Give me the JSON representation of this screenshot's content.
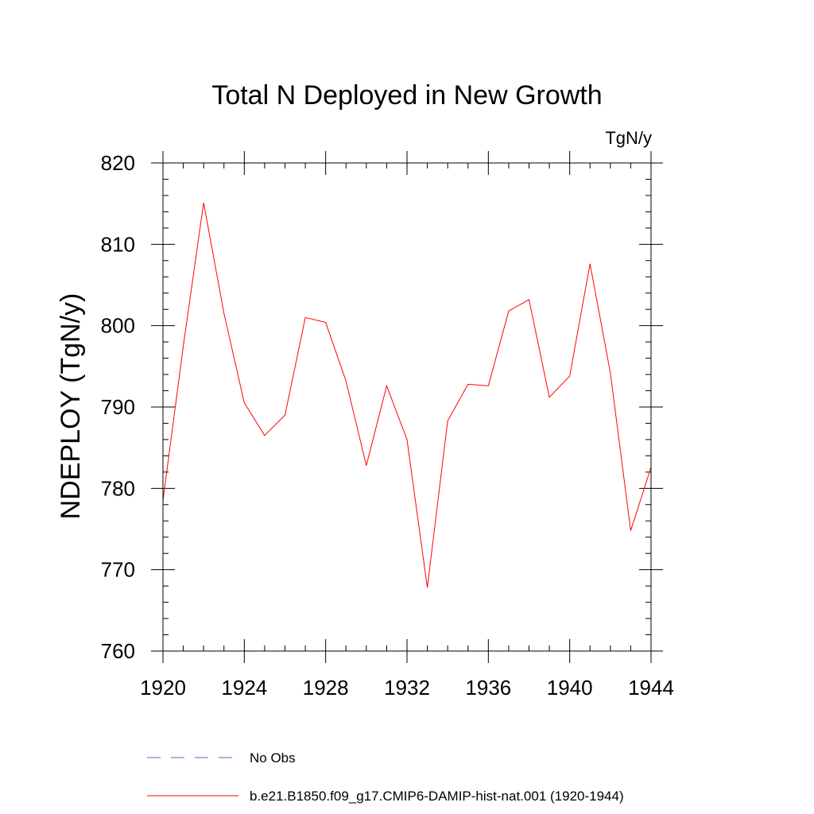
{
  "chart_data": {
    "type": "line",
    "title": "Total N Deployed in New Growth",
    "units_label": "TgN/y",
    "ylabel": "NDEPLOY  (TgN/y)",
    "xlabel": "",
    "xlim": [
      1920,
      1944
    ],
    "ylim": [
      760,
      820
    ],
    "x_ticks": [
      1920,
      1924,
      1928,
      1932,
      1936,
      1940,
      1944
    ],
    "y_ticks": [
      760,
      770,
      780,
      790,
      800,
      810,
      820
    ],
    "x_minor_step": 1,
    "y_minor_step": 2,
    "grid": false,
    "legend_position": "bottom-left",
    "x": [
      1920,
      1921,
      1922,
      1923,
      1924,
      1925,
      1926,
      1927,
      1928,
      1929,
      1930,
      1931,
      1932,
      1933,
      1934,
      1935,
      1936,
      1937,
      1938,
      1939,
      1940,
      1941,
      1942,
      1943,
      1944
    ],
    "series": [
      {
        "name": "b.e21.B1850.f09_g17.CMIP6-DAMIP-hist-nat.001 (1920-1944)",
        "color": "#ff0000",
        "dash": "solid",
        "values": [
          778.5,
          797.5,
          815.1,
          801.5,
          790.5,
          786.5,
          789.0,
          801.0,
          800.4,
          793.2,
          782.8,
          792.6,
          786.0,
          767.8,
          788.3,
          792.8,
          792.6,
          801.8,
          803.2,
          791.2,
          793.8,
          807.6,
          794.2,
          774.8,
          782.6
        ]
      }
    ],
    "legend": [
      {
        "label": "No Obs",
        "color": "#6a5acd",
        "dash": "dashed"
      },
      {
        "label": "b.e21.B1850.f09_g17.CMIP6-DAMIP-hist-nat.001 (1920-1944)",
        "color": "#ff0000",
        "dash": "solid"
      }
    ]
  }
}
